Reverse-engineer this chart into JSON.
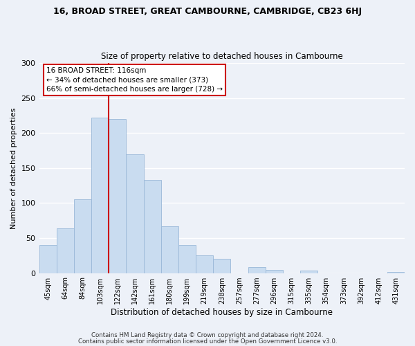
{
  "title": "16, BROAD STREET, GREAT CAMBOURNE, CAMBRIDGE, CB23 6HJ",
  "subtitle": "Size of property relative to detached houses in Cambourne",
  "xlabel": "Distribution of detached houses by size in Cambourne",
  "ylabel": "Number of detached properties",
  "footer_line1": "Contains HM Land Registry data © Crown copyright and database right 2024.",
  "footer_line2": "Contains public sector information licensed under the Open Government Licence v3.0.",
  "bar_labels": [
    "45sqm",
    "64sqm",
    "84sqm",
    "103sqm",
    "122sqm",
    "142sqm",
    "161sqm",
    "180sqm",
    "199sqm",
    "219sqm",
    "238sqm",
    "257sqm",
    "277sqm",
    "296sqm",
    "315sqm",
    "335sqm",
    "354sqm",
    "373sqm",
    "392sqm",
    "412sqm",
    "431sqm"
  ],
  "bar_values": [
    40,
    64,
    105,
    222,
    220,
    170,
    133,
    67,
    40,
    25,
    20,
    0,
    8,
    5,
    0,
    4,
    0,
    0,
    0,
    0,
    2
  ],
  "bar_color": "#c9dcf0",
  "bar_edge_color": "#9ab8d8",
  "ref_line_x": 3.5,
  "ref_line_color": "#cc0000",
  "annotation_title": "16 BROAD STREET: 116sqm",
  "annotation_line1": "← 34% of detached houses are smaller (373)",
  "annotation_line2": "66% of semi-detached houses are larger (728) →",
  "annotation_box_color": "#ffffff",
  "annotation_box_edge_color": "#cc0000",
  "ylim": [
    0,
    300
  ],
  "yticks": [
    0,
    50,
    100,
    150,
    200,
    250,
    300
  ],
  "bg_color": "#edf1f8",
  "plot_bg_color": "#edf1f8",
  "grid_color": "#ffffff"
}
